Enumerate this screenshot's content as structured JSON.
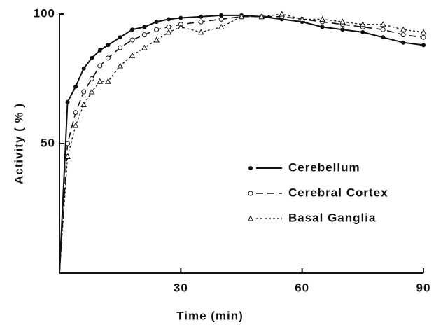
{
  "chart_data": {
    "type": "line",
    "x_label": "Time (min)",
    "y_label": "Activity ( % )",
    "x": [
      0,
      2,
      4,
      6,
      8,
      10,
      12,
      15,
      18,
      21,
      24,
      27,
      30,
      35,
      40,
      45,
      50,
      55,
      60,
      65,
      70,
      75,
      80,
      85,
      90
    ],
    "series": [
      {
        "name": "Cerebellum",
        "color": "#111111",
        "dash": "solid",
        "marker": "dot",
        "values": [
          0,
          66,
          72,
          79,
          83,
          86,
          88,
          91,
          94,
          95,
          97,
          98,
          98.5,
          99,
          99.5,
          99.5,
          99,
          98,
          97,
          95,
          94,
          93,
          91,
          89,
          88
        ]
      },
      {
        "name": "Cerebral Cortex",
        "color": "#111111",
        "dash": "dashed",
        "marker": "circle",
        "values": [
          0,
          50,
          62,
          70,
          75,
          80,
          83,
          87,
          90,
          92,
          94,
          95,
          96,
          97,
          98,
          99,
          99,
          99,
          98,
          97,
          96,
          95,
          94,
          92,
          91
        ]
      },
      {
        "name": "Basal Ganglia",
        "color": "#111111",
        "dash": "dotted",
        "marker": "triangle",
        "values": [
          0,
          45,
          57,
          65,
          70,
          74,
          74,
          80,
          84,
          87,
          90,
          93,
          95,
          93,
          95,
          99,
          99,
          100,
          98,
          98,
          97,
          96,
          96,
          94,
          93
        ]
      }
    ],
    "xlim": [
      0,
      90
    ],
    "xticks": [
      30,
      60,
      90
    ],
    "ylim": [
      0,
      100
    ],
    "yticks": [
      50,
      100
    ],
    "legend": "right"
  }
}
